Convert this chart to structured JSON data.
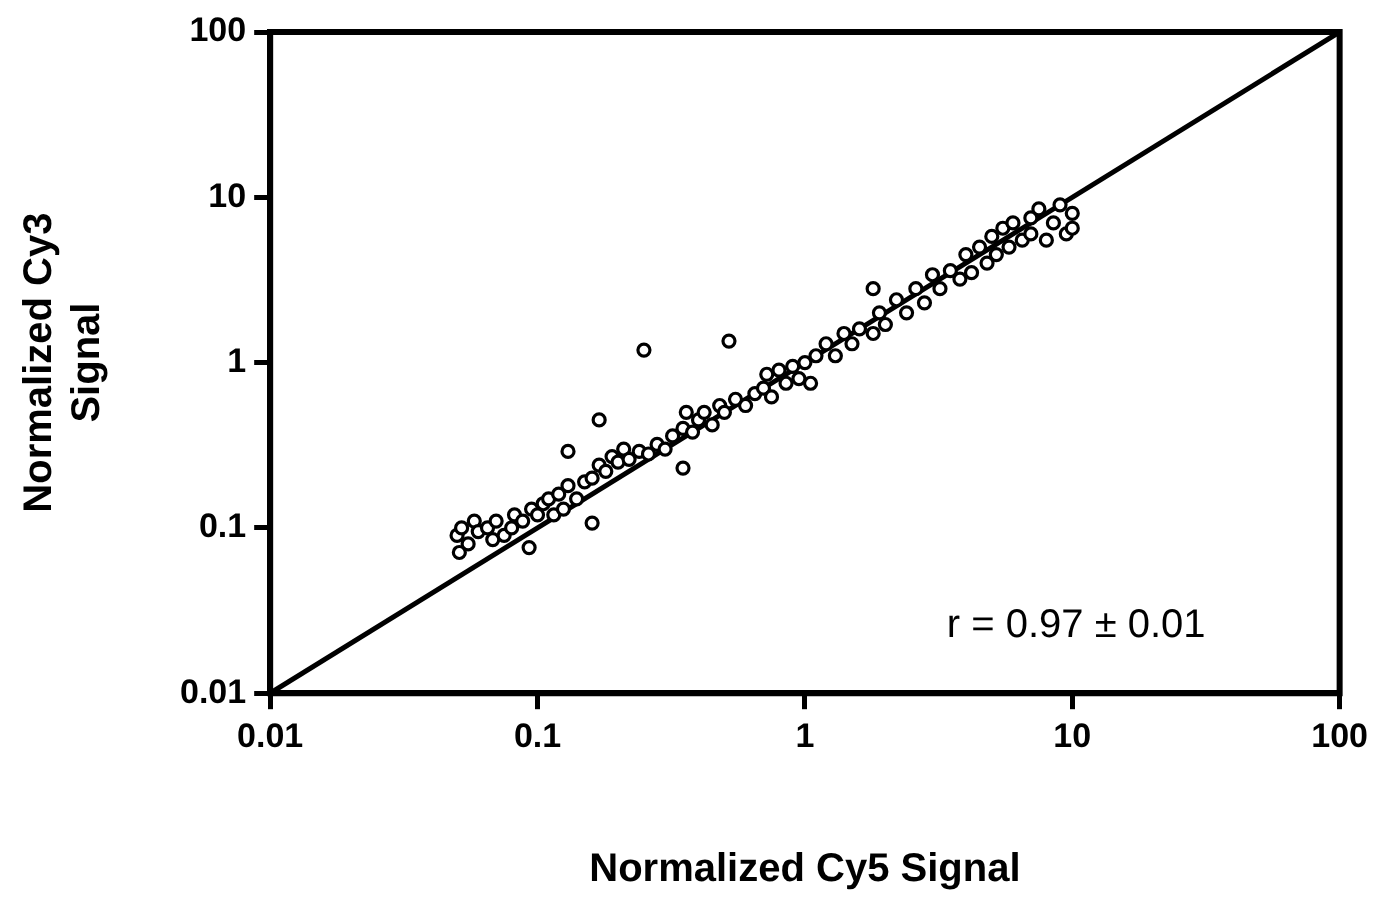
{
  "chart_data": {
    "type": "scatter",
    "xlabel": "Normalized Cy5 Signal",
    "ylabel": "Normalized Cy3\nSignal",
    "log": "xy",
    "grid": false,
    "legend": false,
    "marker": "circle",
    "xlim": [
      0.01,
      100
    ],
    "ylim": [
      0.01,
      100
    ],
    "xticks": [
      0.01,
      0.1,
      1,
      10,
      100
    ],
    "yticks": [
      0.01,
      0.1,
      1,
      10,
      100
    ],
    "annotations": [
      "r = 0.97 ± 0.01"
    ],
    "series": [
      {
        "color": "#000000",
        "x": [
          0.05,
          0.052,
          0.055,
          0.051,
          0.058,
          0.06,
          0.065,
          0.068,
          0.07,
          0.075,
          0.08,
          0.082,
          0.088,
          0.093,
          0.095,
          0.1,
          0.105,
          0.11,
          0.115,
          0.12,
          0.125,
          0.13,
          0.13,
          0.14,
          0.15,
          0.16,
          0.16,
          0.17,
          0.17,
          0.18,
          0.19,
          0.2,
          0.21,
          0.22,
          0.24,
          0.25,
          0.26,
          0.28,
          0.3,
          0.32,
          0.35,
          0.35,
          0.36,
          0.38,
          0.4,
          0.42,
          0.45,
          0.48,
          0.5,
          0.52,
          0.55,
          0.6,
          0.65,
          0.7,
          0.72,
          0.75,
          0.8,
          0.85,
          0.9,
          0.95,
          1,
          1.05,
          1.1,
          1.2,
          1.3,
          1.4,
          1.5,
          1.6,
          1.8,
          1.8,
          1.9,
          2,
          2.2,
          2.4,
          2.6,
          2.8,
          3,
          3.2,
          3.5,
          3.8,
          4,
          4.2,
          4.5,
          4.8,
          5,
          5.2,
          5.5,
          5.8,
          6,
          6.5,
          7,
          7,
          7.5,
          8,
          8.5,
          9,
          9.5,
          10,
          10
        ],
        "values": [
          0.09,
          0.1,
          0.08,
          0.071,
          0.11,
          0.095,
          0.1,
          0.085,
          0.11,
          0.09,
          0.1,
          0.12,
          0.11,
          0.076,
          0.13,
          0.12,
          0.14,
          0.15,
          0.12,
          0.16,
          0.13,
          0.29,
          0.18,
          0.15,
          0.19,
          0.107,
          0.2,
          0.45,
          0.24,
          0.22,
          0.27,
          0.25,
          0.3,
          0.26,
          0.29,
          1.19,
          0.28,
          0.32,
          0.3,
          0.36,
          0.23,
          0.4,
          0.5,
          0.38,
          0.45,
          0.5,
          0.42,
          0.55,
          0.5,
          1.35,
          0.6,
          0.55,
          0.65,
          0.7,
          0.85,
          0.62,
          0.9,
          0.75,
          0.95,
          0.8,
          1,
          0.75,
          1.1,
          1.3,
          1.1,
          1.5,
          1.3,
          1.6,
          2.8,
          1.5,
          2,
          1.7,
          2.4,
          2,
          2.8,
          2.3,
          3.4,
          2.8,
          3.6,
          3.2,
          4.5,
          3.5,
          5,
          4,
          5.8,
          4.5,
          6.5,
          5,
          7,
          5.5,
          7.5,
          6,
          8.5,
          5.5,
          7,
          9,
          6,
          8,
          6.5
        ]
      },
      {
        "type": "line",
        "color": "#000000",
        "marker": "none",
        "x": [
          0.01,
          100
        ],
        "values": [
          0.01,
          100
        ]
      }
    ]
  }
}
